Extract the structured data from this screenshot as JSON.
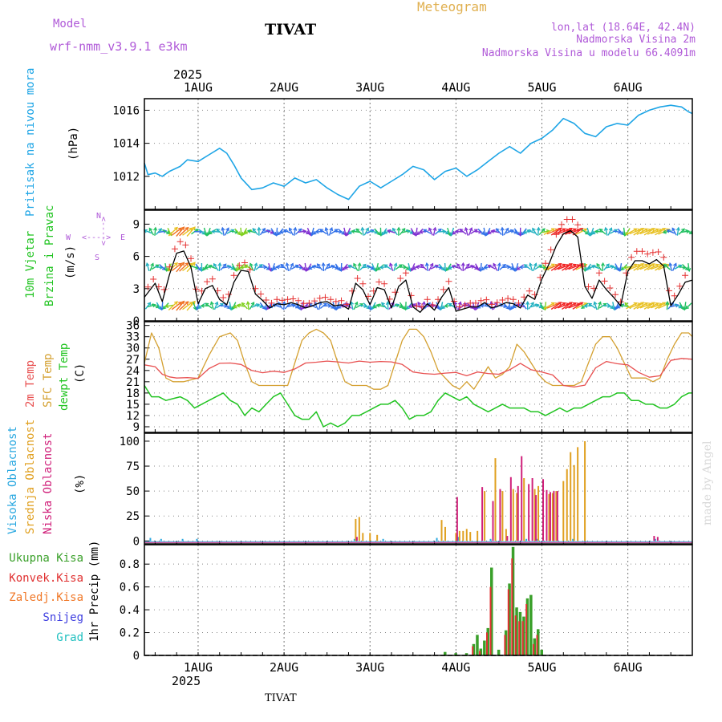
{
  "header": {
    "model_label": "Model",
    "model_name": "wrf-nmm_v3.9.1 e3km",
    "station_title": "TIVAT",
    "meteogram_label": "Meteogram",
    "lonlat": "lon,lat (18.64E, 42.4N)",
    "elevation": "Nadmorska Visina 2m",
    "model_elevation": "Nadmorska Visina u modelu 66.4091m",
    "bottom_station": "TIVAT",
    "credit": "made by Angel"
  },
  "colors": {
    "pressure": "#1ea5e6",
    "speed_black": "#000000",
    "speed_red": "#e53030",
    "t2m": "#e85050",
    "sfc": "#d4a030",
    "dew": "#22c422",
    "high_cloud": "#2aa8e0",
    "mid_cloud": "#e0a020",
    "low_cloud": "#d0207a",
    "precip_total": "#3aa02a",
    "precip_conv": "#e03030",
    "freezing": "#f07828",
    "snow": "#4040e0",
    "grad": "#20c0c0",
    "purple_text": "#b05ad8",
    "meteogram": "#e0b050"
  },
  "time_axis": {
    "year": "2025",
    "days": [
      "1AUG",
      "2AUG",
      "3AUG",
      "4AUG",
      "5AUG",
      "6AUG"
    ],
    "start_hour": -15,
    "end_hour": 138
  },
  "wind_legend": {
    "n": "N",
    "s": "S",
    "w": "W",
    "e": "E",
    "arrows": "<---->"
  },
  "chart_data": [
    {
      "type": "line",
      "id": "pressure",
      "ylabel_main": "Pritisak na nivou mora",
      "ylabel_unit": "(hPa)",
      "yticks": [
        1012,
        1014,
        1016
      ],
      "ylim": [
        1010.0,
        1016.7
      ],
      "series": [
        {
          "name": "MSLP",
          "x": [
            -15,
            -14,
            -12,
            -10,
            -8,
            -5,
            -3,
            0,
            3,
            6,
            8,
            10,
            12,
            15,
            18,
            21,
            24,
            27,
            30,
            33,
            36,
            39,
            42,
            45,
            48,
            51,
            54,
            57,
            60,
            63,
            66,
            69,
            72,
            75,
            78,
            81,
            84,
            87,
            90,
            93,
            96,
            99,
            102,
            105,
            108,
            111,
            114,
            117,
            120,
            123,
            126,
            129,
            132,
            135,
            137,
            138
          ],
          "values": [
            1012.8,
            1012.1,
            1012.2,
            1012.0,
            1012.3,
            1012.6,
            1013.0,
            1012.9,
            1013.3,
            1013.7,
            1013.4,
            1012.7,
            1011.9,
            1011.2,
            1011.3,
            1011.6,
            1011.4,
            1011.9,
            1011.6,
            1011.8,
            1011.3,
            1010.9,
            1010.6,
            1011.4,
            1011.7,
            1011.3,
            1011.7,
            1012.1,
            1012.6,
            1012.4,
            1011.8,
            1012.3,
            1012.5,
            1012.0,
            1012.4,
            1012.9,
            1013.4,
            1013.8,
            1013.4,
            1014.0,
            1014.3,
            1014.8,
            1015.5,
            1015.2,
            1014.6,
            1014.4,
            1015.0,
            1015.2,
            1015.1,
            1015.7,
            1016.0,
            1016.2,
            1016.3,
            1016.2,
            1015.9,
            1015.8
          ]
        }
      ]
    },
    {
      "type": "line",
      "id": "wind",
      "ylabel_main": "10m Vjetar",
      "ylabel_sub": "Brzina i Pravac",
      "ylabel_unit": "(m/s)",
      "yticks": [
        0,
        3,
        6,
        9
      ],
      "ylim": [
        0,
        10.3
      ],
      "series": [
        {
          "name": "wind speed",
          "x": [
            -15,
            -12,
            -10,
            -8,
            -6,
            -4,
            -2,
            0,
            2,
            4,
            6,
            8,
            10,
            12,
            14,
            16,
            18,
            20,
            22,
            24,
            26,
            28,
            30,
            32,
            34,
            36,
            38,
            40,
            42,
            44,
            46,
            48,
            50,
            52,
            54,
            56,
            58,
            60,
            62,
            64,
            66,
            68,
            70,
            72,
            74,
            76,
            78,
            80,
            82,
            84,
            86,
            88,
            90,
            92,
            94,
            96,
            98,
            100,
            102,
            104,
            106,
            108,
            110,
            112,
            114,
            116,
            118,
            120,
            122,
            124,
            126,
            128,
            130,
            132,
            134,
            136,
            138
          ],
          "values": [
            2.2,
            3.5,
            1.8,
            4.3,
            6.3,
            6.5,
            5.0,
            1.6,
            3.0,
            3.3,
            2.0,
            1.5,
            3.6,
            4.7,
            4.6,
            2.5,
            1.9,
            1.2,
            1.6,
            1.5,
            1.7,
            1.5,
            1.2,
            1.4,
            1.7,
            1.8,
            1.4,
            1.5,
            1.1,
            3.5,
            2.9,
            1.5,
            3.1,
            2.9,
            1.2,
            3.2,
            3.8,
            1.3,
            0.8,
            1.6,
            1.0,
            2.2,
            3.1,
            0.9,
            1.1,
            1.3,
            1.3,
            1.7,
            1.2,
            1.4,
            1.7,
            1.6,
            1.2,
            2.4,
            2.0,
            3.9,
            5.3,
            7.0,
            8.1,
            8.4,
            7.8,
            3.2,
            2.1,
            3.8,
            2.9,
            2.2,
            1.4,
            4.6,
            5.6,
            5.6,
            5.3,
            5.7,
            5.1,
            1.4,
            2.4,
            3.6,
            3.8
          ]
        }
      ]
    },
    {
      "type": "line",
      "id": "temperature",
      "ylabel_a": "2m Temp",
      "ylabel_b": "SFC Temp",
      "ylabel_c": "dewpt Temp",
      "ylabel_unit": "(C)",
      "yticks": [
        9,
        12,
        15,
        18,
        21,
        24,
        27,
        30,
        33,
        36
      ],
      "ylim": [
        7.5,
        37.0
      ],
      "series": [
        {
          "name": "2m Temp",
          "x": [
            -15,
            -12,
            -10,
            -8,
            -6,
            -3,
            0,
            3,
            6,
            9,
            12,
            15,
            18,
            21,
            24,
            27,
            30,
            33,
            36,
            39,
            42,
            45,
            48,
            51,
            54,
            57,
            60,
            63,
            66,
            69,
            72,
            75,
            78,
            81,
            84,
            87,
            90,
            93,
            96,
            99,
            102,
            105,
            108,
            111,
            114,
            117,
            120,
            123,
            126,
            129,
            132,
            135,
            138
          ],
          "values": [
            25.5,
            25.0,
            23.0,
            22.3,
            22.0,
            22.1,
            21.9,
            24.5,
            25.9,
            26.0,
            25.6,
            24.0,
            23.4,
            23.8,
            23.5,
            24.4,
            26.0,
            26.2,
            26.5,
            26.3,
            26.0,
            26.5,
            26.2,
            26.4,
            26.3,
            25.6,
            23.6,
            23.2,
            23.0,
            23.3,
            23.5,
            22.6,
            23.6,
            23.2,
            23.0,
            24.2,
            25.9,
            24.2,
            23.6,
            22.8,
            20.0,
            19.6,
            20.1,
            24.7,
            26.4,
            25.8,
            25.5,
            23.5,
            22.2,
            22.6,
            26.7,
            27.2,
            27.0
          ]
        },
        {
          "name": "SFC Temp",
          "x": [
            -15,
            -13,
            -11,
            -9,
            -7,
            -4,
            0,
            3,
            6,
            9,
            11,
            13,
            15,
            17,
            19,
            21,
            23,
            25,
            27,
            29,
            31,
            33,
            35,
            37,
            39,
            41,
            43,
            45,
            47,
            49,
            51,
            53,
            55,
            57,
            59,
            61,
            63,
            65,
            67,
            69,
            71,
            73,
            75,
            77,
            79,
            81,
            83,
            85,
            87,
            89,
            91,
            93,
            95,
            97,
            99,
            101,
            103,
            105,
            107,
            109,
            111,
            113,
            115,
            117,
            119,
            121,
            123,
            125,
            127,
            129,
            131,
            133,
            135,
            137,
            138
          ],
          "values": [
            26,
            34,
            30,
            22,
            21,
            21,
            22,
            28,
            33,
            34,
            32,
            26,
            21,
            20,
            20,
            20,
            20,
            20,
            26,
            32,
            34,
            35,
            34,
            32,
            26,
            21,
            20,
            20,
            20,
            19,
            19,
            20,
            26,
            32,
            35,
            35,
            33,
            29,
            24,
            22,
            20,
            19,
            21,
            19,
            22,
            25,
            22,
            23,
            25,
            31,
            29,
            26,
            23,
            21,
            20,
            20,
            20,
            20,
            21,
            26,
            31,
            33,
            33,
            30,
            26,
            22,
            22,
            22,
            21,
            22,
            27,
            31,
            34,
            34,
            33
          ]
        },
        {
          "name": "dewpt Temp",
          "x": [
            -15,
            -13,
            -11,
            -9,
            -7,
            -5,
            -3,
            -1,
            1,
            3,
            5,
            7,
            9,
            11,
            13,
            15,
            17,
            19,
            21,
            23,
            25,
            27,
            29,
            31,
            33,
            35,
            37,
            39,
            41,
            43,
            45,
            47,
            49,
            51,
            53,
            55,
            57,
            59,
            61,
            63,
            65,
            67,
            69,
            71,
            73,
            75,
            77,
            79,
            81,
            83,
            85,
            87,
            89,
            91,
            93,
            95,
            97,
            99,
            101,
            103,
            105,
            107,
            109,
            111,
            113,
            115,
            117,
            119,
            121,
            123,
            125,
            127,
            129,
            131,
            133,
            135,
            137,
            138
          ],
          "values": [
            20,
            17,
            17,
            16,
            16.5,
            17,
            16,
            14,
            15,
            16,
            17,
            18,
            16,
            15,
            12,
            14,
            13,
            15,
            17,
            18,
            15,
            12,
            11,
            11,
            13,
            9,
            10,
            9,
            10,
            12,
            12,
            13,
            14,
            15,
            15,
            16,
            14,
            11,
            12,
            12,
            13,
            16,
            18,
            17,
            16,
            17,
            15,
            14,
            13,
            14,
            15,
            14,
            14,
            14,
            13,
            13,
            12,
            13,
            14,
            13,
            14,
            14,
            15,
            16,
            17,
            17,
            18,
            18,
            16,
            16,
            15,
            15,
            14,
            14,
            15,
            17,
            18,
            18
          ]
        }
      ]
    },
    {
      "type": "bar",
      "id": "clouds",
      "ylabel_a": "Visoka Oblacnost",
      "ylabel_b": "Srednja Oblacnost",
      "ylabel_c": "Niska Oblacnost",
      "ylabel_unit": "(%)",
      "yticks": [
        0,
        25,
        50,
        75,
        100
      ],
      "ylim": [
        -3,
        108
      ],
      "series": [
        {
          "name": "Visoka Oblacnost",
          "x": [
            -13,
            -10,
            -4,
            0,
            44,
            52,
            67,
            73,
            82,
            92,
            95,
            105,
            128
          ],
          "values": [
            3,
            2,
            2,
            2,
            2,
            2,
            3,
            4,
            2,
            2,
            2,
            2,
            2
          ]
        },
        {
          "name": "Srednja Oblacnost",
          "x": [
            44,
            45,
            46,
            48,
            50,
            68,
            69,
            72,
            73,
            74,
            75,
            76,
            78,
            80,
            83,
            85,
            86,
            88,
            89,
            91,
            94,
            95,
            98,
            99,
            100,
            102,
            103,
            104,
            105,
            106,
            108
          ],
          "values": [
            22,
            24,
            8,
            8,
            6,
            21,
            14,
            8,
            10,
            10,
            12,
            9,
            10,
            50,
            83,
            50,
            12,
            52,
            48,
            63,
            52,
            55,
            47,
            48,
            50,
            60,
            72,
            89,
            76,
            94,
            100
          ]
        },
        {
          "name": "Niska Oblacnost",
          "x": [
            44,
            72,
            79,
            82,
            84,
            86,
            87,
            89,
            90,
            92,
            93,
            94,
            96,
            97,
            98,
            99,
            100,
            127,
            128
          ],
          "values": [
            4,
            44,
            54,
            40,
            52,
            5,
            64,
            55,
            85,
            57,
            63,
            46,
            62,
            51,
            49,
            50,
            50,
            5,
            4
          ]
        }
      ]
    },
    {
      "type": "bar",
      "id": "precip",
      "ylabel_total": "Ukupna Kisa",
      "ylabel_conv": "Konvek.Kisa",
      "ylabel_freez": "Zaledj.Kisa",
      "ylabel_snow": "Snijeg",
      "ylabel_grad": "Grad",
      "ylabel_unit": "1hr Precip (mm)",
      "yticks": [
        0,
        0.2,
        0.4,
        0.6,
        0.8
      ],
      "ylim": [
        0,
        0.97
      ],
      "series": [
        {
          "name": "Ukupna Kisa",
          "x": [
            69,
            72,
            75,
            77,
            78,
            79,
            80,
            81,
            82,
            84,
            86,
            87,
            88,
            89,
            90,
            91,
            92,
            93,
            94,
            95,
            96
          ],
          "values": [
            0.03,
            0.02,
            0.02,
            0.1,
            0.18,
            0.06,
            0.13,
            0.24,
            0.77,
            0.05,
            0.22,
            0.63,
            0.95,
            0.42,
            0.38,
            0.34,
            0.5,
            0.53,
            0.15,
            0.23,
            0.05
          ]
        },
        {
          "name": "Konvek.Kisa",
          "x": [
            77,
            79,
            81,
            82,
            86,
            87,
            88,
            89,
            90,
            91,
            92,
            94,
            95
          ],
          "values": [
            0.08,
            0.04,
            0.2,
            0.6,
            0.18,
            0.58,
            0.85,
            0.35,
            0.3,
            0.3,
            0.45,
            0.1,
            0.18
          ]
        }
      ]
    }
  ]
}
